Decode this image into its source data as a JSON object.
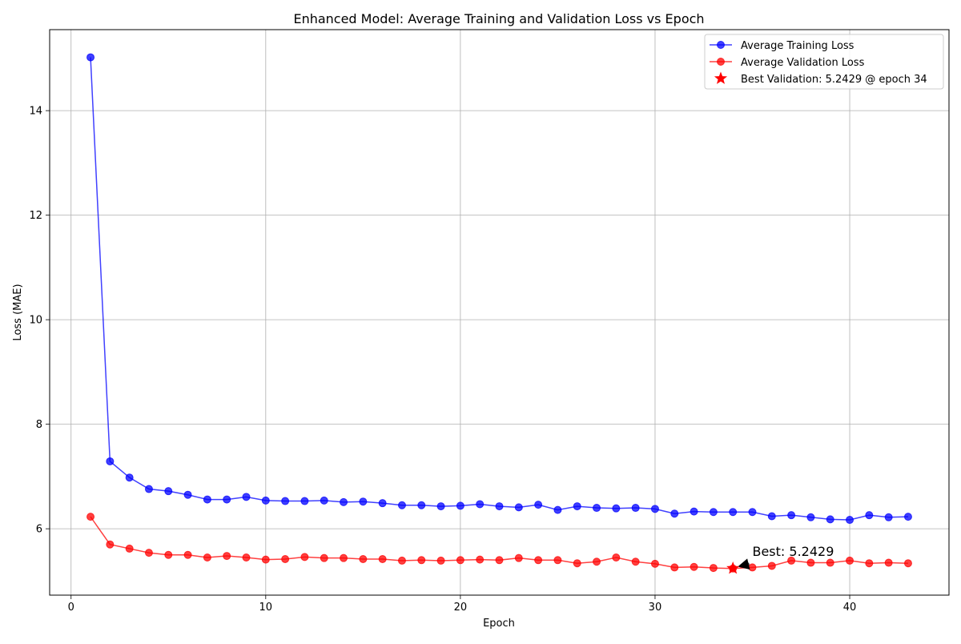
{
  "chart_data": {
    "type": "line",
    "title": "Enhanced Model: Average Training and Validation Loss vs Epoch",
    "xlabel": "Epoch",
    "ylabel": "Loss (MAE)",
    "xlim": [
      -1.1,
      45.1
    ],
    "ylim": [
      4.73,
      15.55
    ],
    "xticks": [
      0,
      10,
      20,
      30,
      40
    ],
    "yticks": [
      6,
      8,
      10,
      12,
      14
    ],
    "grid": true,
    "legend_position": "top-right",
    "x": [
      1,
      2,
      3,
      4,
      5,
      6,
      7,
      8,
      9,
      10,
      11,
      12,
      13,
      14,
      15,
      16,
      17,
      18,
      19,
      20,
      21,
      22,
      23,
      24,
      25,
      26,
      27,
      28,
      29,
      30,
      31,
      32,
      33,
      34,
      35,
      36,
      37,
      38,
      39,
      40,
      41,
      42,
      43
    ],
    "series": [
      {
        "name": "Average Training Loss",
        "color": "#0000ff",
        "marker": "circle",
        "values": [
          15.02,
          7.29,
          6.98,
          6.76,
          6.72,
          6.65,
          6.56,
          6.56,
          6.61,
          6.54,
          6.53,
          6.53,
          6.54,
          6.51,
          6.52,
          6.49,
          6.45,
          6.45,
          6.43,
          6.44,
          6.47,
          6.43,
          6.41,
          6.46,
          6.36,
          6.43,
          6.4,
          6.39,
          6.4,
          6.38,
          6.29,
          6.33,
          6.32,
          6.32,
          6.32,
          6.24,
          6.26,
          6.22,
          6.18,
          6.17,
          6.26,
          6.22,
          6.23
        ]
      },
      {
        "name": "Average Validation Loss",
        "color": "#ff0000",
        "marker": "circle",
        "values": [
          6.23,
          5.7,
          5.62,
          5.54,
          5.5,
          5.5,
          5.45,
          5.48,
          5.45,
          5.41,
          5.42,
          5.46,
          5.44,
          5.44,
          5.42,
          5.42,
          5.39,
          5.4,
          5.39,
          5.4,
          5.41,
          5.4,
          5.44,
          5.4,
          5.4,
          5.34,
          5.37,
          5.45,
          5.37,
          5.33,
          5.26,
          5.27,
          5.25,
          5.24,
          5.26,
          5.29,
          5.39,
          5.35,
          5.35,
          5.39,
          5.34,
          5.35,
          5.34
        ]
      }
    ],
    "best": {
      "name": "Best Validation: 5.2429 @ epoch 34",
      "epoch": 34,
      "value": 5.2429,
      "color": "#ff0000",
      "marker": "star"
    },
    "annotation": {
      "text": "Best: 5.2429",
      "text_x": 35,
      "text_y": 5.45
    }
  }
}
